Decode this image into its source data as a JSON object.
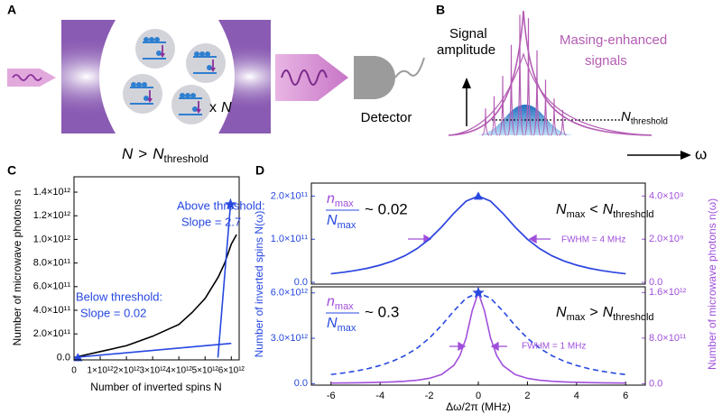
{
  "panel_labels": [
    "A",
    "B",
    "C",
    "D"
  ],
  "panel_a": {
    "multiplier": "x",
    "multiplier_symbol": "N",
    "detector": "Detector",
    "condition": {
      "a": "N",
      "op": ">",
      "b": "N",
      "b_sub": "threshold"
    }
  },
  "panel_b": {
    "ylabel": [
      "Signal",
      "amplitude"
    ],
    "signal_label": [
      "Masing-enhanced",
      "signals"
    ],
    "threshold": {
      "symbol": "N",
      "sub": "threshold"
    },
    "xlabel": "ω"
  },
  "panel_d": {
    "ylabel": "Number of inverted spins N(ω)",
    "y2label": "Number of microwave photons n(ω)",
    "xlabel": "Δω/2π (MHz)"
  },
  "chart_data": [
    {
      "type": "line",
      "xlabel": "Number of inverted spins N",
      "ylabel": "Number of microwave photons n",
      "xlim": [
        0,
        6300000000000.0
      ],
      "ylim": [
        -20000000000.0,
        1530000000000.0
      ],
      "xticks": [
        0,
        {
          "value": 1000000000000.0,
          "label": "1×10¹²"
        },
        {
          "value": 2000000000000.0,
          "label": "2×10¹²"
        },
        {
          "value": 3000000000000.0,
          "label": "3×10¹²"
        },
        {
          "value": 4000000000000.0,
          "label": "4×10¹²"
        },
        {
          "value": 5000000000000.0,
          "label": "5×10¹²"
        },
        {
          "value": 6000000000000.0,
          "label": "6×10¹²"
        }
      ],
      "yticks": [
        {
          "value": 0,
          "label": "0.0"
        },
        {
          "value": 200000000000.0,
          "label": "2.0×10¹¹"
        },
        {
          "value": 400000000000.0,
          "label": "4.0×10¹¹"
        },
        {
          "value": 600000000000.0,
          "label": "6.0×10¹¹"
        },
        {
          "value": 800000000000.0,
          "label": "8.0×10¹¹"
        },
        {
          "value": 1000000000000.0,
          "label": "1.0×10¹²"
        },
        {
          "value": 1200000000000.0,
          "label": "1.2×10¹²"
        },
        {
          "value": 1400000000000.0,
          "label": "1.4×10¹²"
        }
      ],
      "series": [
        {
          "color": "#000000",
          "x": [
            0,
            1000000000000.0,
            2000000000000.0,
            3000000000000.0,
            4000000000000.0,
            4500000000000.0,
            5000000000000.0,
            5500000000000.0,
            5750000000000.0,
            6000000000000.0,
            6200000000000.0
          ],
          "values": [
            0,
            50000000000.0,
            100000000000.0,
            180000000000.0,
            280000000000.0,
            380000000000.0,
            500000000000.0,
            680000000000.0,
            800000000000.0,
            960000000000.0,
            1040000000000.0
          ]
        },
        {
          "color": "#2748e0",
          "x": [
            0,
            6000000000000.0
          ],
          "values": [
            0,
            120000000000.0
          ]
        },
        {
          "color": "#2748e0",
          "x": [
            5490000000000.0,
            5970000000000.0
          ],
          "values": [
            0,
            1296000000000.0
          ]
        }
      ],
      "markers": [
        {
          "shape": "triangle",
          "color": "#2748e0",
          "x": 150000000000.0,
          "y": 0
        },
        {
          "shape": "star",
          "color": "#2748e0",
          "x": 5970000000000.0,
          "y": 1296000000000.0
        }
      ],
      "annotations": [
        {
          "text": [
            "Above threshold:",
            "Slope = 2.7"
          ],
          "color": "#2748e0"
        },
        {
          "text": [
            "Below threshold:",
            "Slope = 0.02"
          ],
          "color": "#2748e0"
        }
      ]
    },
    {
      "type": "line",
      "xlim": [
        -6.8,
        6.8
      ],
      "ylim": [
        -4000000000.0,
        230000000000.0
      ],
      "y2lim": [
        -80000000.0,
        4600000000.0
      ],
      "ycolor": "#2748e0",
      "y2color": "#a04fdc",
      "yticks": [
        {
          "value": 0,
          "label": "0.0"
        },
        {
          "value": 100000000000.0,
          "label": "1.0×10¹¹"
        },
        {
          "value": 200000000000.0,
          "label": "2.0×10¹¹"
        }
      ],
      "y2ticks": [
        {
          "value": 0,
          "label": "0.0"
        },
        {
          "value": 2000000000.0,
          "label": "2.0×10⁹"
        },
        {
          "value": 4000000000.0,
          "label": "4.0×10⁹"
        }
      ],
      "series": [
        {
          "color": "#2748e0",
          "x": [
            -6,
            -5.5,
            -5,
            -4.5,
            -4,
            -3.5,
            -3,
            -2.5,
            -2,
            -1.5,
            -1,
            -0.5,
            0,
            0.5,
            1,
            1.5,
            2,
            2.5,
            3,
            3.5,
            4,
            4.5,
            5,
            5.5,
            6
          ],
          "values": [
            20000000000.0,
            23400000000.0,
            27600000000.0,
            33000000000.0,
            40000000000.0,
            49200000000.0,
            61500000000.0,
            78000000000.0,
            100000000000.0,
            128000000000.0,
            160000000000.0,
            188200000000.0,
            200000000000.0,
            188200000000.0,
            160000000000.0,
            128000000000.0,
            100000000000.0,
            78000000000.0,
            61500000000.0,
            49200000000.0,
            40000000000.0,
            33000000000.0,
            27600000000.0,
            23400000000.0,
            20000000000.0
          ]
        },
        {
          "color": "#a04fdc",
          "axis": "y2",
          "x": [
            -6,
            -5.5,
            -5,
            -4.5,
            -4,
            -3.5,
            -3,
            -2.5,
            -2,
            -1.5,
            -1,
            -0.5,
            0,
            0.5,
            1,
            1.5,
            2,
            2.5,
            3,
            3.5,
            4,
            4.5,
            5,
            5.5,
            6
          ],
          "values": [
            400000000.0,
            468000000.0,
            552000000.0,
            660000000.0,
            800000000.0,
            984000000.0,
            1230000000.0,
            1560000000.0,
            2000000000.0,
            2560000000.0,
            3200000000.0,
            3764000000.0,
            4000000000.0,
            3764000000.0,
            3200000000.0,
            2560000000.0,
            2000000000.0,
            1560000000.0,
            1230000000.0,
            984000000.0,
            800000000.0,
            660000000.0,
            552000000.0,
            468000000.0,
            400000000.0
          ]
        }
      ],
      "markers": [
        {
          "shape": "triangle",
          "color": "#2748e0",
          "x": 0,
          "y": 200000000000.0
        }
      ],
      "ratio": {
        "numerator": "n",
        "numerator_sub": "max",
        "denominator": "N",
        "denominator_sub": "max",
        "approx": "~ 0.02"
      },
      "condition": {
        "a": "N",
        "a_sub": "max",
        "op": "<",
        "b": "N",
        "b_sub": "threshold"
      },
      "fwhm": "FWHM = 4 MHz"
    },
    {
      "type": "line",
      "xlim": [
        -6.8,
        6.8
      ],
      "ylim": [
        -100000000000.0,
        6400000000000.0
      ],
      "y2lim": [
        -25000000000.0,
        1700000000000.0
      ],
      "ycolor": "#2748e0",
      "y2color": "#a04fdc",
      "xticks": [
        -6,
        -4,
        -2,
        0,
        2,
        4,
        6
      ],
      "yticks": [
        {
          "value": 0,
          "label": "0.0"
        },
        {
          "value": 3000000000000.0,
          "label": "3.0×10¹²"
        },
        {
          "value": 6000000000000.0,
          "label": "6.0×10¹²"
        }
      ],
      "y2ticks": [
        {
          "value": 0,
          "label": "0.0"
        },
        {
          "value": 800000000000.0,
          "label": "8.0×10¹¹"
        },
        {
          "value": 1600000000000.0,
          "label": "1.6×10¹²"
        }
      ],
      "series": [
        {
          "color": "#2748e0",
          "dash": true,
          "x": [
            -6,
            -5.5,
            -5,
            -4.5,
            -4,
            -3.5,
            -3,
            -2.5,
            -2,
            -1.5,
            -1,
            -0.5,
            0,
            0.5,
            1,
            1.5,
            2,
            2.5,
            3,
            3.5,
            4,
            4.5,
            5,
            5.5,
            6
          ],
          "values": [
            600000000000.0,
            702000000000.0,
            828000000000.0,
            990000000000.0,
            1200000000000.0,
            1476000000000.0,
            1845000000000.0,
            2340000000000.0,
            3000000000000.0,
            3840000000000.0,
            4800000000000.0,
            5646000000000.0,
            6000000000000.0,
            5646000000000.0,
            4800000000000.0,
            3840000000000.0,
            3000000000000.0,
            2340000000000.0,
            1845000000000.0,
            1476000000000.0,
            1200000000000.0,
            990000000000.0,
            828000000000.0,
            702000000000.0,
            600000000000.0
          ]
        },
        {
          "color": "#a04fdc",
          "axis": "y2",
          "x": [
            -6,
            -5.5,
            -5,
            -4.5,
            -4,
            -3.5,
            -3,
            -2.5,
            -2,
            -1.5,
            -1,
            -0.75,
            -0.5,
            -0.25,
            0,
            0.25,
            0.5,
            0.75,
            1,
            1.5,
            2,
            2.5,
            3,
            3.5,
            4,
            4.5,
            5,
            5.5,
            6
          ],
          "values": [
            11030000000.0,
            13110000000.0,
            15840000000.0,
            19510000000.0,
            24620000000.0,
            32000000000.0,
            43240000000.0,
            61540000000.0,
            94120000000.0,
            160000000000.0,
            320000000000.0,
            492300000000.0,
            800000000000.0,
            1280000000000.0,
            1600000000000.0,
            1280000000000.0,
            800000000000.0,
            492300000000.0,
            320000000000.0,
            160000000000.0,
            94120000000.0,
            61540000000.0,
            43240000000.0,
            32000000000.0,
            24620000000.0,
            19510000000.0,
            15840000000.0,
            13110000000.0,
            11030000000.0
          ]
        }
      ],
      "markers": [
        {
          "shape": "star",
          "color": "#2748e0",
          "x": 0,
          "y": 6000000000000.0
        }
      ],
      "ratio": {
        "numerator": "n",
        "numerator_sub": "max",
        "denominator": "N",
        "denominator_sub": "max",
        "approx": "~ 0.3"
      },
      "condition": {
        "a": "N",
        "a_sub": "max",
        "op": ">",
        "b": "N",
        "b_sub": "threshold"
      },
      "fwhm": "FWHM = 1 MHz"
    }
  ]
}
